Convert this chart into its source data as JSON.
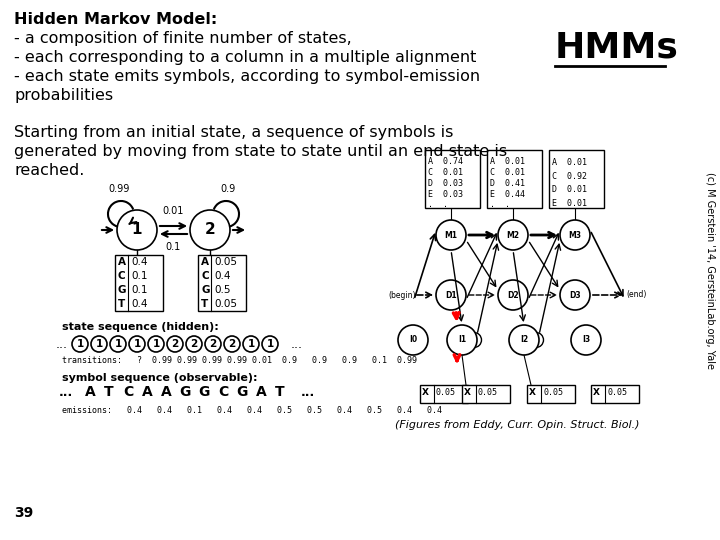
{
  "bg_color": "#ffffff",
  "title_lines": [
    "Hidden Markov Model:",
    "- a composition of finite number of states,",
    "- each corresponding to a column in a multiple alignment",
    "- each state emits symbols, according to symbol-emission",
    "probabilities"
  ],
  "hmms_label": "HMMs",
  "paragraph2_lines": [
    "Starting from an initial state, a sequence of symbols is",
    "generated by moving from state to state until an end state is",
    "reached."
  ],
  "caption": "(Figures from Eddy, Curr. Opin. Struct. Biol.)",
  "sidebar_text": "(c) M Gerstein '14, GersteinLab.org, Yale",
  "slide_number": "39",
  "title_fontsize": 11.5,
  "body_fontsize": 11.5,
  "hmms_fontsize": 26,
  "caption_fontsize": 8,
  "sidebar_fontsize": 7
}
